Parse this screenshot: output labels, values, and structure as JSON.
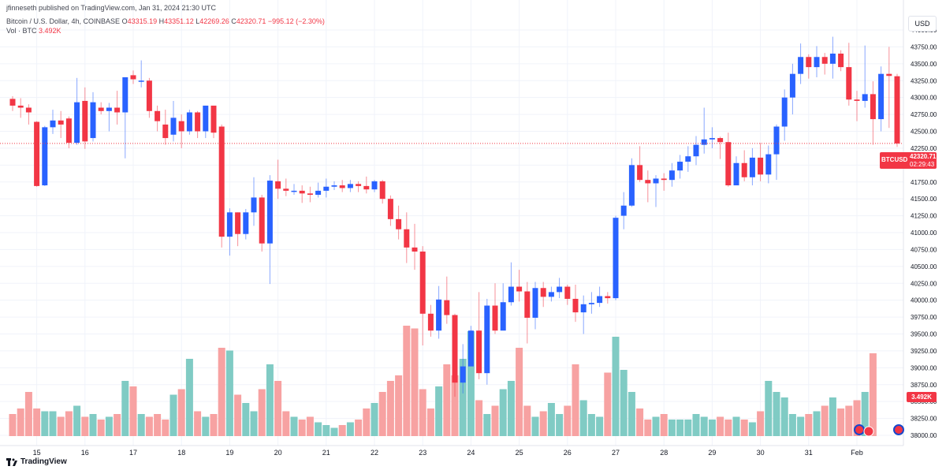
{
  "published": "jfinneseth published on TradingView.com, Jan 31, 2024 21:30 UTC",
  "header": {
    "symbol": "Bitcoin / U.S. Dollar, 4h, COINBASE",
    "o_label": "O",
    "o": "43315.19",
    "h_label": "H",
    "h": "43351.12",
    "l_label": "L",
    "l": "42269.26",
    "c_label": "C",
    "c": "42320.71",
    "change": "−995.12 (−2.30%)",
    "vol_label": "Vol · BTC",
    "vol_value": "3.492K"
  },
  "currency": "USD",
  "last_price_tag": {
    "symbol": "BTCUSD",
    "price": "42320.71",
    "countdown": "02:29:43"
  },
  "volume_tag": "3.492K",
  "footer": {
    "brand": "TradingView"
  },
  "colors": {
    "up": "#2962ff",
    "down": "#f23645",
    "vol_up": "#80cbc4",
    "vol_down": "#f7a2a2"
  },
  "chart_data": {
    "type": "candlestick",
    "symbol": "BTCUSD",
    "interval": "4h",
    "ylim": [
      38000,
      44000
    ],
    "y_ticks": [
      "38000.00",
      "38250.00",
      "38500.00",
      "38750.00",
      "39000.00",
      "39250.00",
      "39500.00",
      "39750.00",
      "40000.00",
      "40250.00",
      "40500.00",
      "40750.00",
      "41000.00",
      "41250.00",
      "41500.00",
      "41750.00",
      "42000.00",
      "42250.00",
      "42500.00",
      "42750.00",
      "43000.00",
      "43250.00",
      "43500.00",
      "43750.00",
      "44000.00"
    ],
    "x_ticks": [
      {
        "label": "15",
        "bar": 3
      },
      {
        "label": "16",
        "bar": 9
      },
      {
        "label": "17",
        "bar": 15
      },
      {
        "label": "18",
        "bar": 21
      },
      {
        "label": "19",
        "bar": 27
      },
      {
        "label": "20",
        "bar": 33
      },
      {
        "label": "21",
        "bar": 39
      },
      {
        "label": "22",
        "bar": 45
      },
      {
        "label": "23",
        "bar": 51
      },
      {
        "label": "24",
        "bar": 57
      },
      {
        "label": "25",
        "bar": 63
      },
      {
        "label": "26",
        "bar": 69
      },
      {
        "label": "27",
        "bar": 75
      },
      {
        "label": "28",
        "bar": 81
      },
      {
        "label": "29",
        "bar": 87
      },
      {
        "label": "30",
        "bar": 93
      },
      {
        "label": "31",
        "bar": 99
      },
      {
        "label": "Feb",
        "bar": 105
      }
    ],
    "last_price": 42320.71,
    "candles": [
      [
        42980,
        42880,
        43020,
        42800
      ],
      [
        42880,
        42850,
        42990,
        42700
      ],
      [
        42850,
        42780,
        42900,
        42600
      ],
      [
        42640,
        41690,
        42650,
        41680
      ],
      [
        41700,
        42560,
        42580,
        41690
      ],
      [
        42560,
        42660,
        42820,
        42460
      ],
      [
        42660,
        42600,
        42800,
        42400
      ],
      [
        42690,
        42330,
        42720,
        42250
      ],
      [
        42330,
        42930,
        43290,
        42300
      ],
      [
        42950,
        42350,
        43150,
        42240
      ],
      [
        42400,
        42930,
        43080,
        42350
      ],
      [
        42850,
        42800,
        42930,
        42750
      ],
      [
        42800,
        42850,
        42920,
        42500
      ],
      [
        42850,
        42780,
        43100,
        42600
      ],
      [
        42780,
        43300,
        43300,
        42100
      ],
      [
        43330,
        43270,
        43400,
        43200
      ],
      [
        43250,
        43250,
        43550,
        43150
      ],
      [
        43250,
        42800,
        43290,
        42700
      ],
      [
        42800,
        42650,
        42880,
        42500
      ],
      [
        42600,
        42400,
        42820,
        42300
      ],
      [
        42450,
        42700,
        42950,
        42350
      ],
      [
        42650,
        42500,
        42750,
        42250
      ],
      [
        42500,
        42780,
        42820,
        42450
      ],
      [
        42780,
        42500,
        42800,
        42400
      ],
      [
        42500,
        42880,
        42880,
        42400
      ],
      [
        42880,
        42480,
        42880,
        42400
      ],
      [
        42570,
        40940,
        42600,
        40780
      ],
      [
        40940,
        41300,
        41360,
        40660
      ],
      [
        41300,
        40980,
        41300,
        40800
      ],
      [
        40980,
        41300,
        41350,
        40900
      ],
      [
        41300,
        41520,
        41820,
        41100
      ],
      [
        41520,
        40840,
        41560,
        40720
      ],
      [
        40840,
        41770,
        41850,
        40240
      ],
      [
        41760,
        41650,
        42080,
        41500
      ],
      [
        41650,
        41620,
        41800,
        41540
      ],
      [
        41620,
        41620,
        41720,
        41560
      ],
      [
        41620,
        41580,
        41700,
        41440
      ],
      [
        41580,
        41560,
        41680,
        41450
      ],
      [
        41560,
        41620,
        41740,
        41520
      ],
      [
        41620,
        41680,
        41800,
        41520
      ],
      [
        41680,
        41700,
        41760,
        41630
      ],
      [
        41700,
        41660,
        41780,
        41600
      ],
      [
        41660,
        41720,
        41780,
        41600
      ],
      [
        41720,
        41690,
        41760,
        41600
      ],
      [
        41690,
        41640,
        41830,
        41580
      ],
      [
        41640,
        41760,
        41780,
        41600
      ],
      [
        41760,
        41500,
        41780,
        41430
      ],
      [
        41500,
        41200,
        41550,
        41100
      ],
      [
        41200,
        41050,
        41400,
        40900
      ],
      [
        41050,
        40780,
        41300,
        40550
      ],
      [
        40780,
        40720,
        41130,
        40450
      ],
      [
        40720,
        39800,
        40800,
        39330
      ],
      [
        39800,
        39550,
        39930,
        39460
      ],
      [
        39550,
        40010,
        40210,
        39430
      ],
      [
        40000,
        39780,
        40350,
        39650
      ],
      [
        39780,
        38780,
        39800,
        38570
      ],
      [
        38780,
        39020,
        39350,
        38620
      ],
      [
        39020,
        39550,
        39620,
        39380
      ],
      [
        39550,
        38920,
        40120,
        38830
      ],
      [
        38920,
        39920,
        40020,
        38750
      ],
      [
        39920,
        39550,
        40250,
        39500
      ],
      [
        39550,
        39970,
        40250,
        39580
      ],
      [
        39970,
        40200,
        40560,
        39920
      ],
      [
        40200,
        40130,
        40450,
        39980
      ],
      [
        40130,
        39740,
        40270,
        39360
      ],
      [
        39740,
        40180,
        40270,
        39570
      ],
      [
        40180,
        40050,
        40270,
        39900
      ],
      [
        40050,
        40120,
        40200,
        39980
      ],
      [
        40120,
        40200,
        40330,
        40030
      ],
      [
        40200,
        40020,
        40230,
        39930
      ],
      [
        40020,
        39820,
        40230,
        39680
      ],
      [
        39820,
        39940,
        40070,
        39500
      ],
      [
        39940,
        39960,
        40120,
        39800
      ],
      [
        39960,
        40060,
        40200,
        39900
      ],
      [
        40060,
        40030,
        40120,
        39950
      ],
      [
        40030,
        41220,
        41250,
        40000
      ],
      [
        41250,
        41400,
        41600,
        41050
      ],
      [
        41400,
        42000,
        42100,
        41380
      ],
      [
        42000,
        41780,
        42280,
        41750
      ],
      [
        41780,
        41730,
        41920,
        41450
      ],
      [
        41730,
        41800,
        41850,
        41380
      ],
      [
        41800,
        41780,
        41880,
        41620
      ],
      [
        41780,
        41920,
        42030,
        41680
      ],
      [
        41920,
        42050,
        42150,
        41800
      ],
      [
        42050,
        42130,
        42280,
        41900
      ],
      [
        42130,
        42300,
        42430,
        42000
      ],
      [
        42300,
        42380,
        42850,
        42170
      ],
      [
        42380,
        42400,
        42560,
        42250
      ],
      [
        42400,
        42340,
        42420,
        42090
      ],
      [
        42340,
        41700,
        42480,
        41680
      ],
      [
        41700,
        42030,
        42130,
        41750
      ],
      [
        42030,
        41820,
        42220,
        41760
      ],
      [
        41820,
        42110,
        42250,
        41700
      ],
      [
        42110,
        41860,
        42330,
        41760
      ],
      [
        41860,
        42160,
        42290,
        41730
      ],
      [
        42160,
        42570,
        42600,
        41780
      ],
      [
        42570,
        43000,
        43120,
        42360
      ],
      [
        43000,
        43350,
        43500,
        42750
      ],
      [
        43350,
        43600,
        43800,
        43200
      ],
      [
        43600,
        43450,
        43640,
        43280
      ],
      [
        43450,
        43600,
        43760,
        43300
      ],
      [
        43600,
        43500,
        43660,
        43340
      ],
      [
        43500,
        43650,
        43900,
        43280
      ],
      [
        43650,
        43450,
        43700,
        43390
      ],
      [
        43450,
        42970,
        43810,
        42880
      ],
      [
        42970,
        42950,
        43100,
        42650
      ],
      [
        42950,
        43050,
        43770,
        42850
      ],
      [
        43050,
        42680,
        43240,
        42300
      ],
      [
        42680,
        43350,
        43460,
        42500
      ],
      [
        43350,
        43320,
        43750,
        42550
      ],
      [
        43315,
        42320,
        43351,
        42269
      ]
    ],
    "volumes": [
      8,
      10,
      16,
      10,
      9,
      9,
      7,
      9,
      11,
      7,
      8,
      6,
      7,
      8,
      20,
      18,
      8,
      7,
      8,
      6,
      15,
      17,
      28,
      9,
      7,
      8,
      32,
      31,
      15,
      12,
      9,
      17,
      26,
      20,
      9,
      7,
      6,
      7,
      5,
      4,
      3,
      4,
      5,
      6,
      10,
      12,
      16,
      20,
      22,
      40,
      39,
      17,
      10,
      18,
      26,
      22,
      28,
      38,
      13,
      8,
      11,
      17,
      20,
      32,
      11,
      7,
      9,
      12,
      8,
      11,
      26,
      13,
      8,
      7,
      23,
      36,
      24,
      16,
      10,
      6,
      7,
      8,
      6,
      6,
      6,
      8,
      7,
      6,
      7,
      6,
      7,
      6,
      5,
      9,
      20,
      16,
      14,
      8,
      7,
      8,
      9,
      11,
      14,
      10,
      11,
      13,
      16,
      30
    ]
  }
}
